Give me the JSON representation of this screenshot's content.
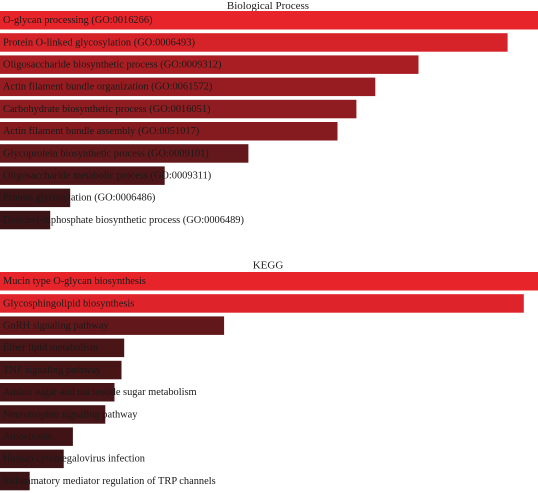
{
  "chart_data": [
    {
      "type": "bar",
      "orientation": "horizontal",
      "title": "Biological Process",
      "bar_color_high": "#e8242b",
      "bar_color_low": "#3d1416",
      "categories": [
        "O-glycan processing (GO:0016266)",
        "Protein O-linked glycosylation (GO:0006493)",
        "Oligosaccharide biosynthetic process (GO:0009312)",
        "Actin filament bundle organization (GO:0061572)",
        "Carbohydrate biosynthetic process (GO:0016051)",
        "Actin filament bundle assembly (GO:0051017)",
        "Glycoprotein biosynthetic process (GO:0009101)",
        "Oligosaccharide metabolic process (GO:0009311)",
        "Protein glycosylation (GO:0006486)",
        "Dolichyl-diphosphate biosynthetic process (GO:0006489)"
      ],
      "values": [
        1.0,
        0.94,
        0.775,
        0.695,
        0.66,
        0.625,
        0.46,
        0.305,
        0.13,
        0.093
      ]
    },
    {
      "type": "bar",
      "orientation": "horizontal",
      "title": "KEGG",
      "bar_color_high": "#e8242b",
      "bar_color_low": "#3d1416",
      "categories": [
        "Mucin type O-glycan biosynthesis",
        "Glycosphingolipid biosynthesis",
        "GnRH signaling pathway",
        "Ether lipid metabolism",
        "TNF signaling pathway",
        "Amino sugar and nucleotide sugar metabolism",
        "Neurotrophin signaling pathway",
        "Amoebiasis",
        "Human cytomegalovirus infection",
        "Inflammatory mediator regulation of TRP channels"
      ],
      "values": [
        1.0,
        0.97,
        0.415,
        0.23,
        0.225,
        0.212,
        0.195,
        0.135,
        0.118,
        0.055
      ]
    }
  ]
}
